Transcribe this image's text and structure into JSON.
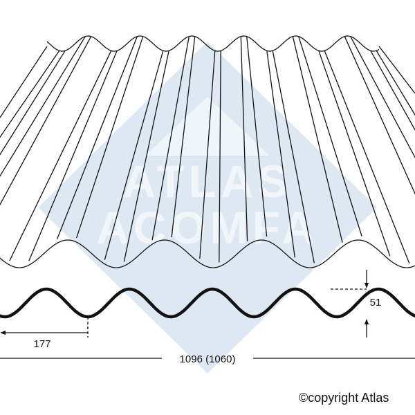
{
  "watermark": {
    "line1": "ATLAS",
    "line2": "ACOMFA",
    "color": "#dde8f3"
  },
  "dimensions": {
    "pitch": "177",
    "depth": "51",
    "overall_width": "1096 (1060)"
  },
  "copyright": "©copyright Atlas",
  "colors": {
    "line": "#111111",
    "background": "#ffffff"
  }
}
